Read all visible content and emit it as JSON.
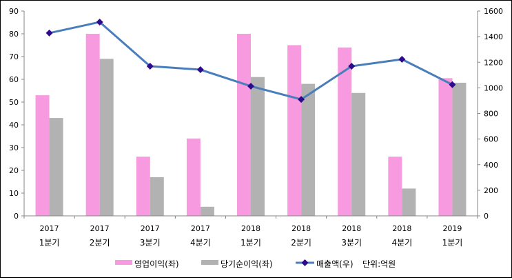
{
  "chart_data": {
    "type": "bar+line",
    "title": "",
    "categories": [
      {
        "year": "2017",
        "quarter": "1분기"
      },
      {
        "year": "2017",
        "quarter": "2분기"
      },
      {
        "year": "2017",
        "quarter": "3분기"
      },
      {
        "year": "2017",
        "quarter": "4분기"
      },
      {
        "year": "2018",
        "quarter": "1분기"
      },
      {
        "year": "2018",
        "quarter": "2분기"
      },
      {
        "year": "2018",
        "quarter": "3분기"
      },
      {
        "year": "2018",
        "quarter": "4분기"
      },
      {
        "year": "2019",
        "quarter": "1분기"
      }
    ],
    "series": [
      {
        "name": "영업이익(좌)",
        "type": "bar",
        "axis": "left",
        "color": "#f79ae0",
        "values": [
          53,
          80,
          26,
          34,
          80,
          75,
          74,
          26,
          60.5
        ]
      },
      {
        "name": "당기순이익(좌)",
        "type": "bar",
        "axis": "left",
        "color": "#b2b2b2",
        "values": [
          43,
          69,
          17,
          4,
          61,
          58,
          54,
          12,
          58.5
        ]
      },
      {
        "name": "매출액(우)",
        "type": "line",
        "axis": "right",
        "color": "#4a7ebb",
        "marker_color": "#2e0a8c",
        "values": [
          1428,
          1514,
          1169,
          1142,
          1013,
          910,
          1169,
          1223,
          1025
        ]
      }
    ],
    "left_axis": {
      "ylim": [
        0,
        90
      ],
      "ticks": [
        "0",
        "10",
        "20",
        "30",
        "40",
        "50",
        "60",
        "70",
        "80",
        "90"
      ]
    },
    "right_axis": {
      "ylim": [
        0,
        1600
      ],
      "ticks": [
        "0",
        "200",
        "400",
        "600",
        "800",
        "1000",
        "1200",
        "1400",
        "1600"
      ]
    },
    "unit_note": "단위:억원",
    "legend_position": "bottom",
    "grid": false
  }
}
